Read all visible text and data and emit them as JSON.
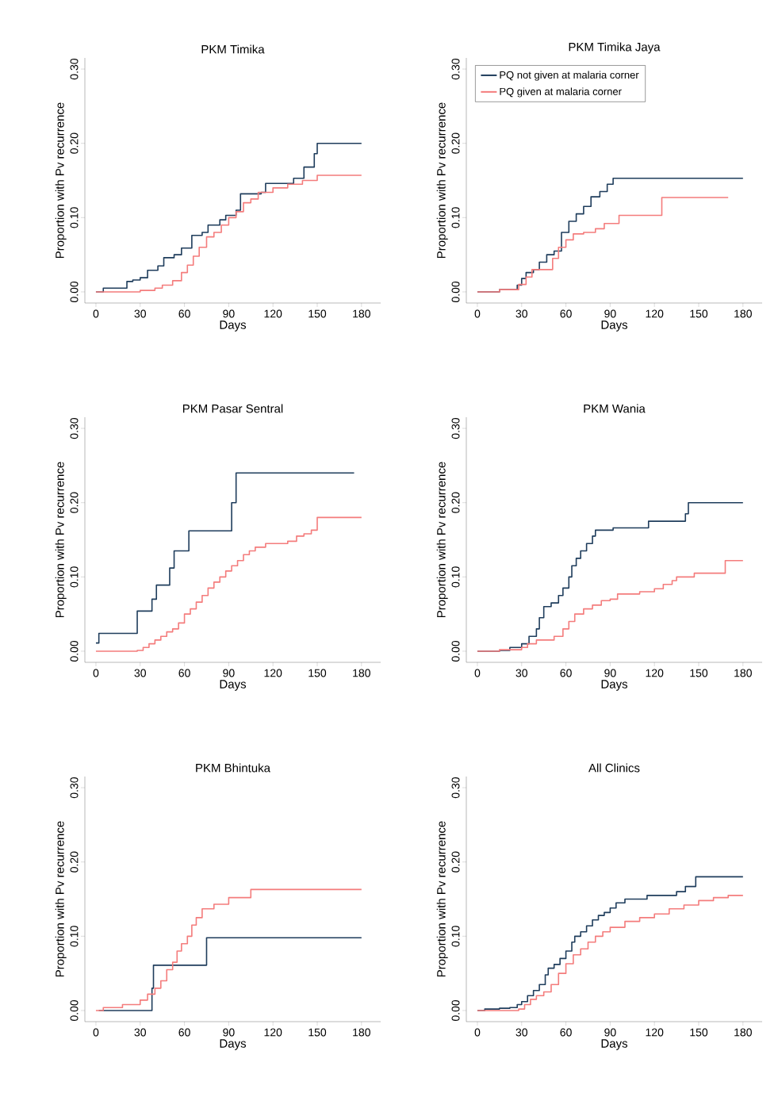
{
  "chart_data": [
    {
      "type": "step",
      "title": "PKM Timika",
      "xlabel": "Days",
      "ylabel": "Proportion with Pv recurrence",
      "xlim": [
        -7.5,
        193
      ],
      "ylim": [
        -0.015,
        0.315
      ],
      "xticks": [
        0,
        30,
        60,
        90,
        120,
        150,
        180
      ],
      "yticks": [
        {
          "value": 0,
          "label": "0.00"
        },
        {
          "value": 0.1,
          "label": "0.10"
        },
        {
          "value": 0.2,
          "label": "0.20"
        },
        {
          "value": 0.3,
          "label": "0.30"
        }
      ],
      "legend": false,
      "series": [
        {
          "color": "#1f3d5c",
          "x": [
            0,
            5,
            21,
            25,
            30,
            35,
            42,
            46,
            53,
            58,
            65,
            72,
            76,
            84,
            88,
            95,
            98,
            112,
            115,
            134,
            141,
            148,
            150,
            180
          ],
          "values": [
            0,
            0.005,
            0.014,
            0.016,
            0.019,
            0.029,
            0.035,
            0.046,
            0.05,
            0.059,
            0.076,
            0.08,
            0.09,
            0.097,
            0.103,
            0.11,
            0.132,
            0.134,
            0.146,
            0.153,
            0.168,
            0.186,
            0.2,
            0.2
          ]
        },
        {
          "color": "#f47c7c",
          "x": [
            0,
            30,
            40,
            45,
            52,
            58,
            62,
            66,
            70,
            75,
            80,
            85,
            90,
            95,
            100,
            105,
            110,
            120,
            130,
            140,
            150,
            180
          ],
          "values": [
            0,
            0.002,
            0.005,
            0.009,
            0.015,
            0.026,
            0.036,
            0.048,
            0.06,
            0.074,
            0.08,
            0.09,
            0.1,
            0.108,
            0.12,
            0.125,
            0.134,
            0.14,
            0.145,
            0.15,
            0.157,
            0.157
          ]
        }
      ]
    },
    {
      "type": "step",
      "title": "PKM Timika Jaya",
      "xlabel": "Days",
      "ylabel": "Proportion with Pv recurrence",
      "xlim": [
        -7.5,
        193
      ],
      "ylim": [
        -0.015,
        0.315
      ],
      "xticks": [
        0,
        30,
        60,
        90,
        120,
        150,
        180
      ],
      "yticks": [
        {
          "value": 0,
          "label": "0.00"
        },
        {
          "value": 0.1,
          "label": "0.10"
        },
        {
          "value": 0.2,
          "label": "0.20"
        },
        {
          "value": 0.3,
          "label": "0.30"
        }
      ],
      "legend": "top left",
      "series": [
        {
          "name": "PQ not given at malaria corner",
          "color": "#1f3d5c",
          "x": [
            0,
            15,
            27,
            30,
            33,
            38,
            42,
            47,
            52,
            57,
            62,
            67,
            72,
            77,
            83,
            88,
            92,
            180
          ],
          "values": [
            0,
            0.003,
            0.009,
            0.018,
            0.026,
            0.03,
            0.04,
            0.05,
            0.055,
            0.08,
            0.095,
            0.105,
            0.115,
            0.128,
            0.135,
            0.145,
            0.153,
            0.153
          ]
        },
        {
          "name": "PQ given at malaria corner",
          "color": "#f47c7c",
          "x": [
            0,
            15,
            28,
            33,
            37,
            51,
            55,
            60,
            65,
            72,
            80,
            86,
            96,
            125,
            170
          ],
          "values": [
            0,
            0.003,
            0.01,
            0.02,
            0.03,
            0.045,
            0.06,
            0.07,
            0.078,
            0.08,
            0.085,
            0.092,
            0.103,
            0.127,
            0.127
          ]
        }
      ]
    },
    {
      "type": "step",
      "title": "PKM Pasar Sentral",
      "xlabel": "Days",
      "ylabel": "Proportion with Pv recurrence",
      "xlim": [
        -7.5,
        193
      ],
      "ylim": [
        -0.015,
        0.315
      ],
      "xticks": [
        0,
        30,
        60,
        90,
        120,
        150,
        180
      ],
      "yticks": [
        {
          "value": 0,
          "label": "0.00"
        },
        {
          "value": 0.1,
          "label": "0.10"
        },
        {
          "value": 0.2,
          "label": "0.20"
        },
        {
          "value": 0.3,
          "label": "0.30"
        }
      ],
      "legend": false,
      "series": [
        {
          "color": "#1f3d5c",
          "x": [
            0,
            2,
            28,
            38,
            41,
            50,
            53,
            63,
            92,
            95,
            175
          ],
          "values": [
            0.011,
            0.024,
            0.054,
            0.07,
            0.089,
            0.112,
            0.135,
            0.162,
            0.2,
            0.24,
            0.24
          ]
        },
        {
          "color": "#f47c7c",
          "x": [
            0,
            28,
            32,
            36,
            40,
            44,
            48,
            52,
            56,
            60,
            64,
            68,
            72,
            76,
            80,
            84,
            88,
            92,
            96,
            100,
            104,
            108,
            115,
            130,
            136,
            141,
            146,
            150,
            180
          ],
          "values": [
            0,
            0.001,
            0.005,
            0.01,
            0.015,
            0.02,
            0.026,
            0.03,
            0.038,
            0.05,
            0.057,
            0.066,
            0.075,
            0.085,
            0.093,
            0.1,
            0.108,
            0.115,
            0.122,
            0.13,
            0.135,
            0.14,
            0.145,
            0.148,
            0.155,
            0.158,
            0.163,
            0.18,
            0.18
          ]
        }
      ]
    },
    {
      "type": "step",
      "title": "PKM Wania",
      "xlabel": "Days",
      "ylabel": "Proportion with Pv recurrence",
      "xlim": [
        -7.5,
        193
      ],
      "ylim": [
        -0.015,
        0.315
      ],
      "xticks": [
        0,
        30,
        60,
        90,
        120,
        150,
        180
      ],
      "yticks": [
        {
          "value": 0,
          "label": "0.00"
        },
        {
          "value": 0.1,
          "label": "0.10"
        },
        {
          "value": 0.2,
          "label": "0.20"
        },
        {
          "value": 0.3,
          "label": "0.30"
        }
      ],
      "legend": false,
      "series": [
        {
          "color": "#1f3d5c",
          "x": [
            0,
            15,
            22,
            30,
            35,
            40,
            42,
            45,
            50,
            55,
            58,
            62,
            64,
            67,
            70,
            74,
            78,
            80,
            92,
            116,
            141,
            143,
            180
          ],
          "values": [
            0,
            0.001,
            0.005,
            0.01,
            0.02,
            0.03,
            0.045,
            0.06,
            0.065,
            0.075,
            0.085,
            0.1,
            0.115,
            0.125,
            0.135,
            0.145,
            0.155,
            0.163,
            0.166,
            0.175,
            0.185,
            0.2,
            0.2
          ]
        },
        {
          "color": "#f47c7c",
          "x": [
            0,
            15,
            30,
            34,
            40,
            52,
            58,
            62,
            66,
            72,
            78,
            84,
            90,
            95,
            110,
            120,
            126,
            132,
            135,
            147,
            168,
            180
          ],
          "values": [
            0,
            0.002,
            0.005,
            0.01,
            0.015,
            0.02,
            0.03,
            0.04,
            0.05,
            0.057,
            0.062,
            0.068,
            0.07,
            0.077,
            0.08,
            0.084,
            0.09,
            0.095,
            0.1,
            0.105,
            0.122,
            0.122
          ]
        }
      ]
    },
    {
      "type": "step",
      "title": "PKM Bhintuka",
      "xlabel": "Days",
      "ylabel": "Proportion with Pv recurrence",
      "xlim": [
        -7.5,
        193
      ],
      "ylim": [
        -0.015,
        0.315
      ],
      "xticks": [
        0,
        30,
        60,
        90,
        120,
        150,
        180
      ],
      "yticks": [
        {
          "value": 0,
          "label": "0.00"
        },
        {
          "value": 0.1,
          "label": "0.10"
        },
        {
          "value": 0.2,
          "label": "0.20"
        },
        {
          "value": 0.3,
          "label": "0.30"
        }
      ],
      "legend": false,
      "series": [
        {
          "color": "#1f3d5c",
          "x": [
            2,
            38,
            39,
            75,
            180
          ],
          "values": [
            0,
            0.03,
            0.061,
            0.098,
            0.098
          ]
        },
        {
          "color": "#f47c7c",
          "x": [
            0,
            5,
            18,
            30,
            35,
            40,
            44,
            48,
            52,
            55,
            58,
            62,
            65,
            68,
            72,
            80,
            90,
            105,
            180
          ],
          "values": [
            0,
            0.004,
            0.008,
            0.014,
            0.022,
            0.03,
            0.04,
            0.055,
            0.065,
            0.08,
            0.09,
            0.1,
            0.115,
            0.125,
            0.137,
            0.143,
            0.152,
            0.163,
            0.163
          ]
        }
      ]
    },
    {
      "type": "step",
      "title": "All Clinics",
      "xlabel": "Days",
      "ylabel": "Proportion with Pv recurrence",
      "xlim": [
        -7.5,
        193
      ],
      "ylim": [
        -0.015,
        0.315
      ],
      "xticks": [
        0,
        30,
        60,
        90,
        120,
        150,
        180
      ],
      "yticks": [
        {
          "value": 0,
          "label": "0.00"
        },
        {
          "value": 0.1,
          "label": "0.10"
        },
        {
          "value": 0.2,
          "label": "0.20"
        },
        {
          "value": 0.3,
          "label": "0.30"
        }
      ],
      "legend": false,
      "series": [
        {
          "color": "#1f3d5c",
          "x": [
            0,
            5,
            15,
            22,
            27,
            30,
            34,
            38,
            42,
            46,
            48,
            52,
            56,
            60,
            64,
            66,
            70,
            74,
            78,
            82,
            86,
            90,
            94,
            100,
            115,
            135,
            141,
            148,
            180
          ],
          "values": [
            0,
            0.002,
            0.003,
            0.004,
            0.008,
            0.012,
            0.02,
            0.027,
            0.035,
            0.048,
            0.057,
            0.062,
            0.07,
            0.08,
            0.092,
            0.1,
            0.106,
            0.114,
            0.122,
            0.128,
            0.132,
            0.138,
            0.145,
            0.15,
            0.155,
            0.16,
            0.167,
            0.18,
            0.18
          ]
        },
        {
          "color": "#f47c7c",
          "x": [
            0,
            28,
            32,
            36,
            40,
            45,
            50,
            55,
            60,
            65,
            70,
            75,
            80,
            85,
            90,
            100,
            110,
            120,
            130,
            140,
            150,
            160,
            170,
            180
          ],
          "values": [
            0,
            0.002,
            0.008,
            0.015,
            0.02,
            0.025,
            0.035,
            0.05,
            0.063,
            0.075,
            0.083,
            0.092,
            0.1,
            0.106,
            0.112,
            0.12,
            0.125,
            0.13,
            0.137,
            0.142,
            0.148,
            0.152,
            0.155,
            0.155
          ]
        }
      ]
    }
  ]
}
